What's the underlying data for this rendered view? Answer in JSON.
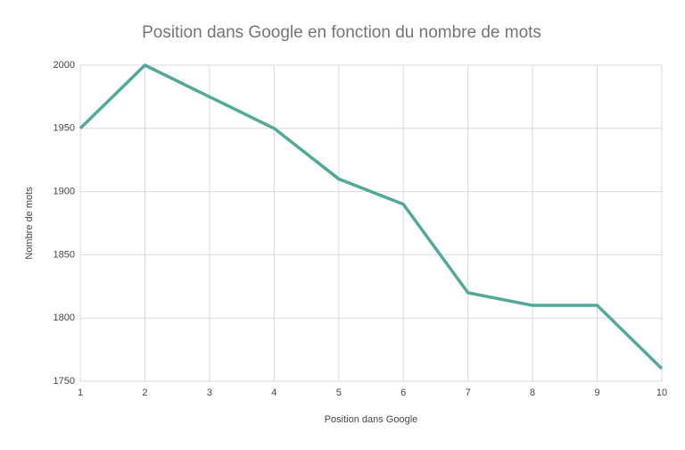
{
  "chart_data": {
    "type": "line",
    "title": "Position dans Google en fonction du nombre de mots",
    "x_label": "Position dans Google",
    "y_label": "Nombre de mots",
    "x": [
      1,
      2,
      3,
      4,
      5,
      6,
      7,
      8,
      9,
      10
    ],
    "series": [
      {
        "color": "#52a99a",
        "values": [
          1950,
          2000,
          1975,
          1950,
          1910,
          1890,
          1820,
          1810,
          1810,
          1760
        ]
      }
    ],
    "xlim": [
      1,
      10
    ],
    "xticks": [
      1,
      2,
      3,
      4,
      5,
      6,
      7,
      8,
      9,
      10
    ],
    "ylim": [
      1750,
      2000
    ],
    "yticks": [
      1750,
      1800,
      1850,
      1900,
      1950,
      2000
    ],
    "grid": true
  }
}
